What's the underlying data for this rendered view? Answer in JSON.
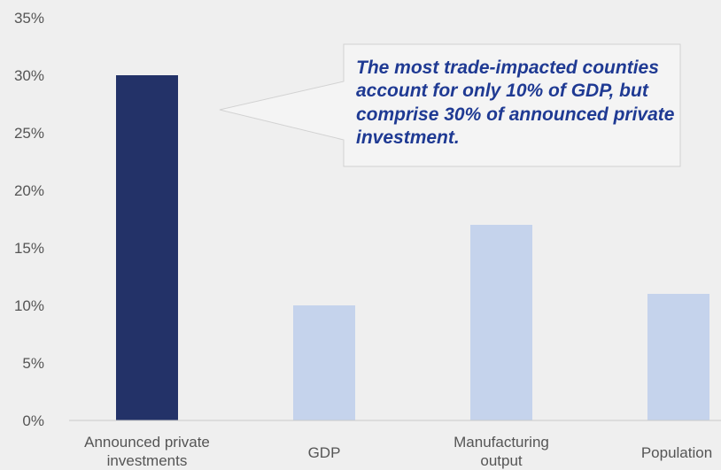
{
  "chart_data": {
    "type": "bar",
    "categories": [
      [
        "Announced private",
        "investments"
      ],
      [
        "GDP"
      ],
      [
        "Manufacturing",
        "output"
      ],
      [
        "Population"
      ]
    ],
    "values": [
      30,
      10,
      17,
      11
    ],
    "ylim": [
      0,
      35
    ],
    "y_ticks": [
      "0%",
      "5%",
      "10%",
      "15%",
      "20%",
      "25%",
      "30%",
      "35%"
    ],
    "bar_colors": [
      "#233268",
      "#c5d3ec",
      "#c5d3ec",
      "#c5d3ec"
    ],
    "grid": false,
    "callout": "The most trade-impacted counties account for only 10% of GDP, but comprise 30% of announced private investment."
  }
}
